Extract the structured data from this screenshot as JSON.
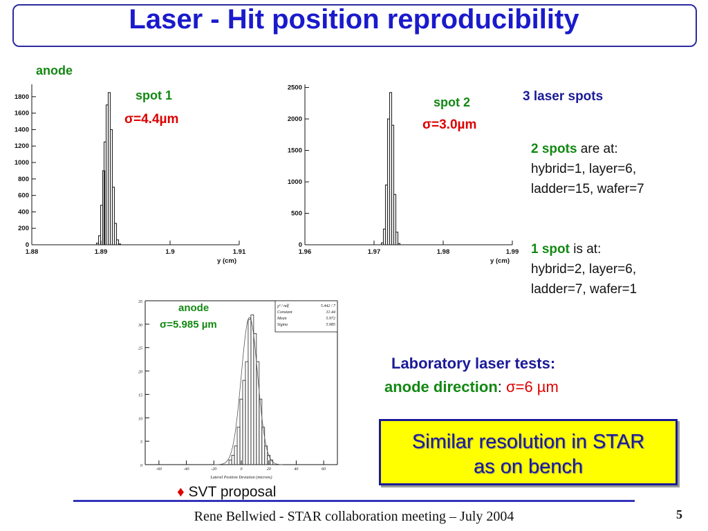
{
  "slide": {
    "title": "Laser - Hit position reproducibility",
    "footer": "Rene Bellwied - STAR collaboration meeting – July 2004",
    "page_number": "5",
    "anode_label": "anode",
    "laser_spots_heading": "3 laser spots",
    "two_spots_key": "2 spots",
    "two_spots_rest": " are at:",
    "two_spots_line1": "hybrid=1, layer=6,",
    "two_spots_line2": "ladder=15, wafer=7",
    "one_spot_key": "1 spot",
    "one_spot_rest": " is at:",
    "one_spot_line1": "hybrid=2, layer=6,",
    "one_spot_line2": "ladder=7, wafer=1",
    "lab_tests": "Laboratory laser tests:",
    "anode_direction": "anode direction",
    "anode_direction_colon": ": ",
    "anode_direction_value": "σ=6 µm",
    "conclusion_line1": "Similar resolution in STAR",
    "conclusion_line2": "as on bench",
    "svt_bullet": "♦",
    "svt_proposal": " SVT proposal",
    "colors": {
      "title": "#1a1acc",
      "green": "#138813",
      "red": "#dd0000",
      "navy": "#1a1a99",
      "highlight": "#ffff00"
    }
  },
  "chart_data": [
    {
      "type": "bar",
      "annotation_spot": "spot 1",
      "annotation_sigma": "σ=4.4µm",
      "xlabel": "y (cm)",
      "xlim": [
        1.88,
        1.91
      ],
      "ylim": [
        0,
        1950
      ],
      "xticks": [
        "1.88",
        "1.89",
        "1.9",
        "1.91"
      ],
      "yticks": [
        "0",
        "200",
        "400",
        "600",
        "800",
        "1000",
        "1200",
        "1400",
        "1600",
        "1800"
      ],
      "x": [
        1.8895,
        1.8898,
        1.8901,
        1.8904,
        1.8906,
        1.8909,
        1.8912,
        1.8915,
        1.8918,
        1.8921,
        1.8924,
        1.8927
      ],
      "values": [
        20,
        110,
        480,
        900,
        1250,
        1700,
        1850,
        1400,
        700,
        260,
        60,
        10
      ]
    },
    {
      "type": "bar",
      "annotation_spot": "spot 2",
      "annotation_sigma": "σ=3.0µm",
      "xlabel": "y (cm)",
      "xlim": [
        1.96,
        1.99
      ],
      "ylim": [
        0,
        2550
      ],
      "xticks": [
        "1.96",
        "1.97",
        "1.98",
        "1.99"
      ],
      "yticks": [
        "0",
        "500",
        "1000",
        "1500",
        "2000",
        "2500"
      ],
      "x": [
        1.9712,
        1.9715,
        1.9718,
        1.9721,
        1.9724,
        1.9727,
        1.973,
        1.9733,
        1.9736
      ],
      "values": [
        30,
        250,
        950,
        2000,
        2420,
        1900,
        800,
        200,
        20
      ]
    },
    {
      "type": "bar",
      "annotation_spot": "anode",
      "annotation_sigma": "σ=5.985 µm",
      "xlabel": "Lateral Position Deviation (microns)",
      "xlim": [
        -70,
        70
      ],
      "ylim": [
        0,
        35
      ],
      "xticks": [
        "-60",
        "-40",
        "-20",
        "0",
        "20",
        "40",
        "60"
      ],
      "yticks": [
        "0",
        "5",
        "10",
        "15",
        "20",
        "25",
        "30",
        "35"
      ],
      "x": [
        -8,
        -6,
        -4,
        -2,
        0,
        2,
        4,
        6,
        8,
        10,
        12,
        14,
        16,
        18,
        20,
        22
      ],
      "values": [
        1,
        2,
        4,
        8,
        14,
        18,
        22,
        31,
        32,
        28,
        22,
        14,
        8,
        4,
        2,
        1
      ],
      "stats": {
        "chi2_label": "χ² / ndf",
        "chi2_value": "5.442   /   7",
        "constant_label": "Constant",
        "constant_value": "31.44",
        "mean_label": "Mean",
        "mean_value": "5.972",
        "sigma_label": "Sigma",
        "sigma_value": "5.985"
      }
    }
  ]
}
